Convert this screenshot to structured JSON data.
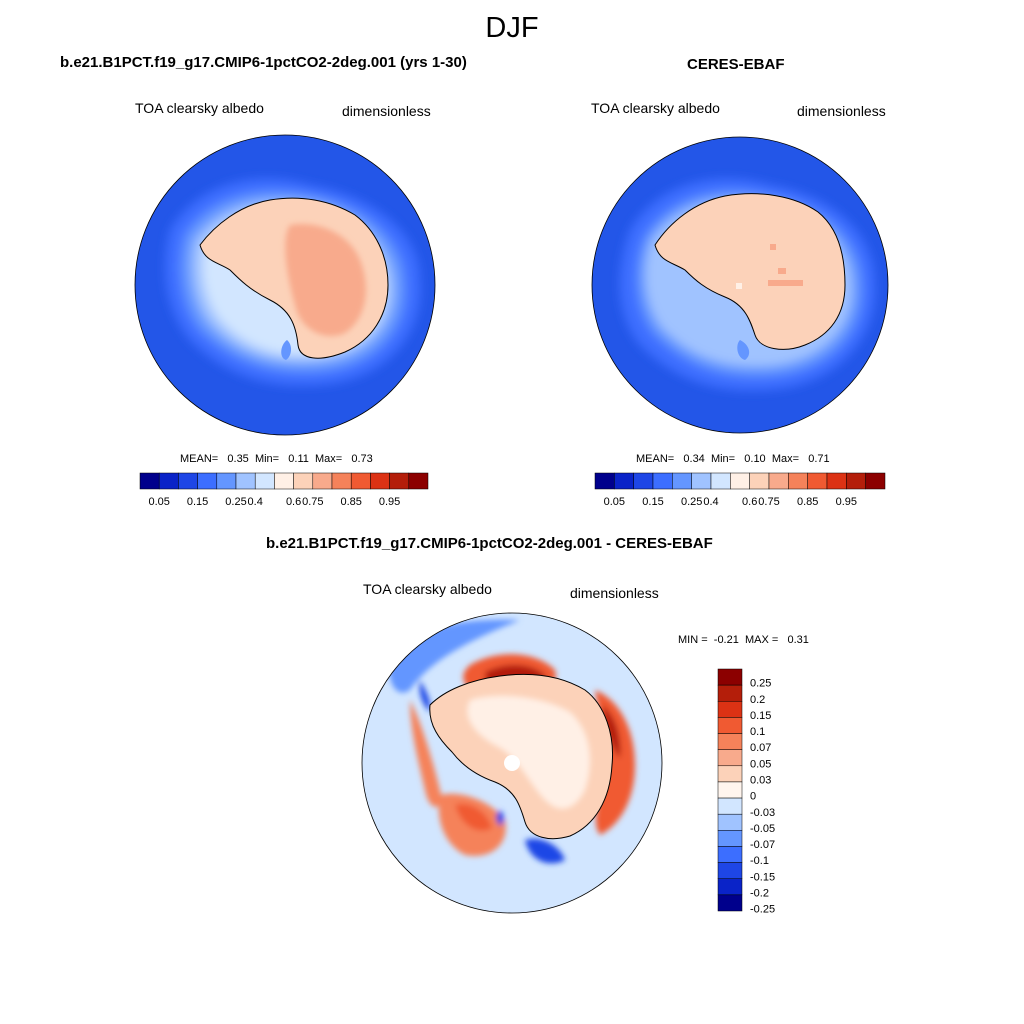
{
  "title": "DJF",
  "panels": [
    {
      "id": "model",
      "title": "b.e21.B1PCT.f19_g17.CMIP6-1pctCO2-2deg.001 (yrs 1-30)",
      "variable": "TOA clearsky albedo",
      "units": "dimensionless",
      "stats": {
        "mean_label": "MEAN=",
        "mean": "0.35",
        "min_label": "Min=",
        "min": "0.11",
        "max_label": "Max=",
        "max": "0.73"
      }
    },
    {
      "id": "obs",
      "title": "CERES-EBAF",
      "variable": "TOA clearsky albedo",
      "units": "dimensionless",
      "stats": {
        "mean_label": "MEAN=",
        "mean": "0.34",
        "min_label": "Min=",
        "min": "0.10",
        "max_label": "Max=",
        "max": "0.71"
      }
    },
    {
      "id": "diff",
      "title": "b.e21.B1PCT.f19_g17.CMIP6-1pctCO2-2deg.001 - CERES-EBAF",
      "variable": "TOA clearsky albedo",
      "units": "dimensionless",
      "stats": {
        "min_label": "MIN =",
        "min": "-0.21",
        "max_label": "MAX =",
        "max": "0.31"
      }
    }
  ],
  "colorbar_abs": {
    "colors": [
      "#00008c",
      "#0a23c8",
      "#1e46e6",
      "#3c6eff",
      "#6496ff",
      "#a0c3ff",
      "#d2e6ff",
      "#fff0e6",
      "#fcd2b9",
      "#f8aa8c",
      "#f5825a",
      "#f05a32",
      "#dc3214",
      "#b41e0a",
      "#8c0000"
    ],
    "ticks": [
      "0.05",
      "0.15",
      "0.25",
      "0.4",
      "0.6",
      "0.75",
      "0.85",
      "0.95"
    ]
  },
  "colorbar_diff": {
    "colors": [
      "#8c0000",
      "#b41e0a",
      "#dc3214",
      "#f05a32",
      "#f5825a",
      "#f8aa8c",
      "#fcd2b9",
      "#fff5ee",
      "#d2e6ff",
      "#a0c3ff",
      "#6496ff",
      "#3c6eff",
      "#1e46e6",
      "#0a23c8",
      "#00008c"
    ],
    "ticks": [
      "0.25",
      "0.2",
      "0.15",
      "0.1",
      "0.07",
      "0.05",
      "0.03",
      "0",
      "-0.03",
      "-0.05",
      "-0.07",
      "-0.1",
      "-0.15",
      "-0.2",
      "-0.25"
    ]
  }
}
